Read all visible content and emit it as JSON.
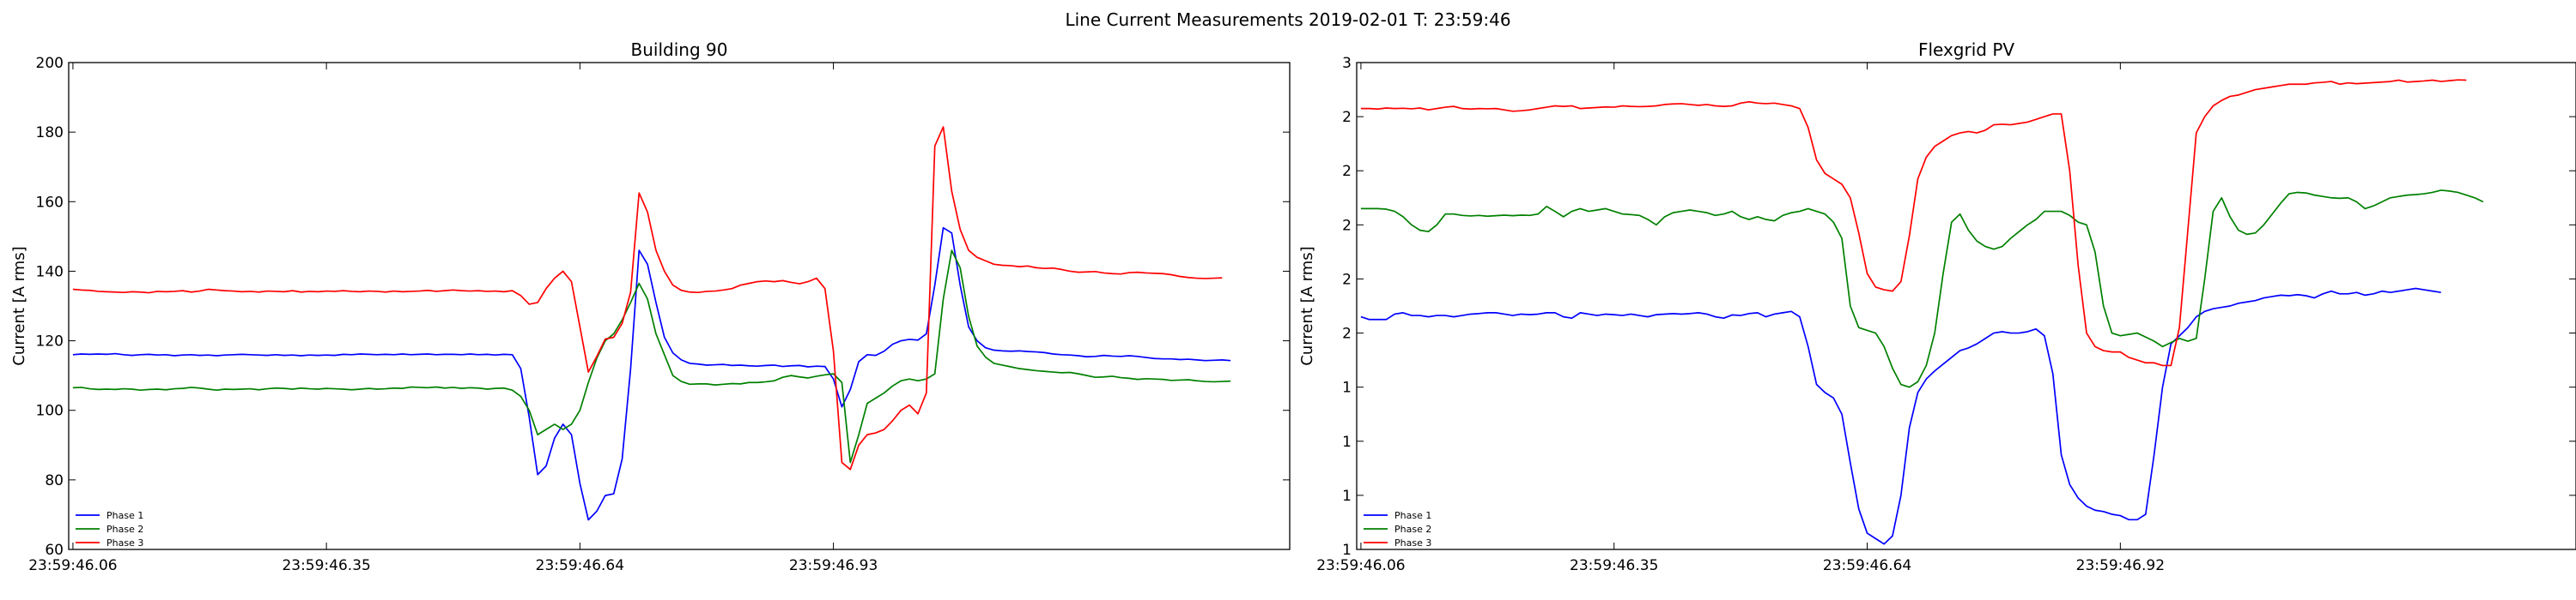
{
  "figure": {
    "title": "Line Current Measurements 2019-02-01 T: 23:59:46"
  },
  "chart_data": [
    {
      "type": "line",
      "title": "Building 90",
      "xlabel": "",
      "ylabel": "Current [A rms]",
      "ylim": [
        60,
        200
      ],
      "yticks": [
        60,
        80,
        100,
        120,
        140,
        160,
        180,
        200
      ],
      "xlim": [
        -0.5,
        144
      ],
      "xticks": [
        {
          "pos": 0,
          "label": "23:59:46.06"
        },
        {
          "pos": 30,
          "label": "23:59:46.35"
        },
        {
          "pos": 60,
          "label": "23:59:46.64"
        },
        {
          "pos": 90,
          "label": "23:59:46.93"
        }
      ],
      "legend_position": "lower-left",
      "grid": false,
      "series": [
        {
          "name": "Phase 1",
          "color": "#0000ff",
          "values": [
            116,
            116.2,
            116.1,
            116.2,
            116.1,
            116.3,
            116,
            115.8,
            116,
            116.1,
            115.9,
            116,
            115.7,
            115.9,
            116,
            115.8,
            115.9,
            115.7,
            115.9,
            116,
            116.1,
            116,
            115.9,
            115.8,
            116,
            115.8,
            115.9,
            115.7,
            115.9,
            115.8,
            115.9,
            115.8,
            116.1,
            116,
            116.2,
            116.1,
            116,
            116.1,
            116,
            116.2,
            116,
            116.1,
            116.2,
            116,
            116.1,
            116.1,
            116,
            116.2,
            116,
            116.1,
            115.9,
            116.1,
            116,
            112,
            98,
            81.5,
            84,
            92,
            96,
            93,
            79,
            68.5,
            71,
            75.5,
            76,
            86,
            112,
            146,
            142,
            131,
            121,
            116.5,
            114.5,
            113.5,
            113.3,
            113,
            113.1,
            113.2,
            112.9,
            113,
            112.8,
            112.7,
            112.9,
            113,
            112.6,
            112.8,
            112.9,
            112.5,
            112.7,
            112.6,
            109,
            101,
            106,
            114,
            116,
            115.8,
            117,
            119,
            120,
            120.4,
            120.2,
            122,
            136,
            152.5,
            151,
            136,
            124,
            120,
            118,
            117.3,
            117.1,
            117,
            117.1,
            116.9,
            116.8,
            116.6,
            116.2,
            116,
            115.9,
            115.7,
            115.4,
            115.5,
            115.8,
            115.6,
            115.5,
            115.7,
            115.5,
            115.2,
            114.9,
            114.8,
            114.8,
            114.6,
            114.7,
            114.5,
            114.3,
            114.4,
            114.5,
            114.3
          ]
        },
        {
          "name": "Phase 2",
          "color": "#008000",
          "values": [
            106.5,
            106.6,
            106.2,
            106,
            106.1,
            106,
            106.2,
            106.1,
            105.8,
            106,
            106.1,
            105.9,
            106.2,
            106.3,
            106.6,
            106.4,
            106.1,
            105.8,
            106.1,
            106,
            106.1,
            106.2,
            105.9,
            106.2,
            106.4,
            106.3,
            106.1,
            106.4,
            106.2,
            106.1,
            106.3,
            106.2,
            106.1,
            105.9,
            106.1,
            106.3,
            106.1,
            106.2,
            106.4,
            106.3,
            106.7,
            106.6,
            106.5,
            106.7,
            106.4,
            106.6,
            106.3,
            106.5,
            106.4,
            106.1,
            106.3,
            106.4,
            105.8,
            104,
            100,
            93,
            94.5,
            96,
            94.5,
            96,
            100,
            108,
            115,
            120,
            122,
            126,
            131,
            136.5,
            132,
            122,
            116,
            110,
            108.3,
            107.5,
            107.6,
            107.6,
            107.3,
            107.5,
            107.7,
            107.6,
            108,
            108,
            108.2,
            108.5,
            109.5,
            110,
            109.6,
            109.3,
            109.8,
            110.2,
            110.5,
            108,
            85,
            93,
            102,
            103.5,
            105,
            107,
            108.5,
            109,
            108.5,
            109,
            110.5,
            132,
            146,
            141,
            127,
            118.5,
            115.3,
            113.5,
            113,
            112.5,
            112,
            111.7,
            111.4,
            111.2,
            111,
            110.8,
            110.9,
            110.5,
            110,
            109.5,
            109.6,
            109.8,
            109.4,
            109.2,
            108.9,
            109.1,
            109,
            108.9,
            108.6,
            108.7,
            108.8,
            108.5,
            108.3,
            108.2,
            108.3,
            108.4
          ]
        },
        {
          "name": "Phase 3",
          "color": "#ff0000",
          "values": [
            134.8,
            134.6,
            134.5,
            134.2,
            134.1,
            134,
            133.9,
            134.1,
            134,
            133.8,
            134.2,
            134.1,
            134.2,
            134.4,
            134,
            134.3,
            134.8,
            134.6,
            134.4,
            134.3,
            134.1,
            134.2,
            134,
            134.3,
            134.2,
            134.1,
            134.4,
            134,
            134.2,
            134.1,
            134.3,
            134.2,
            134.4,
            134.2,
            134.1,
            134.3,
            134.2,
            134,
            134.3,
            134.1,
            134.2,
            134.3,
            134.5,
            134.2,
            134.4,
            134.6,
            134.4,
            134.3,
            134.4,
            134.2,
            134.3,
            134.1,
            134.4,
            133,
            130.5,
            131,
            135,
            138,
            140,
            137,
            124,
            111,
            115.5,
            120.5,
            121,
            125,
            134,
            162.5,
            157,
            146,
            140,
            136,
            134.5,
            134,
            133.9,
            134.2,
            134.3,
            134.6,
            135,
            136,
            136.5,
            137,
            137.2,
            137,
            137.3,
            136.8,
            136.4,
            137,
            138,
            135,
            117,
            85,
            83,
            90,
            93,
            93.5,
            94.5,
            97,
            100,
            101.5,
            99,
            105,
            176,
            181.5,
            163,
            152,
            146,
            144,
            143,
            142,
            141.7,
            141.6,
            141.3,
            141.5,
            141,
            140.8,
            140.9,
            140.5,
            140,
            139.7,
            139.8,
            139.9,
            139.5,
            139.3,
            139.2,
            139.6,
            139.7,
            139.5,
            139.4,
            139.3,
            139,
            138.5,
            138.2,
            138,
            137.9,
            138,
            138.1
          ]
        }
      ]
    },
    {
      "type": "line",
      "title": "Flexgrid PV",
      "xlabel": "",
      "ylabel": "Current [A rms]",
      "ylim": [
        0.8,
        2.6
      ],
      "yticks": [
        0.8,
        1.0,
        1.2,
        1.4,
        1.6,
        1.8,
        2.0,
        2.2,
        2.4,
        2.6
      ],
      "xlim": [
        -0.5,
        144
      ],
      "xticks": [
        {
          "pos": 0,
          "label": "23:59:46.06"
        },
        {
          "pos": 30,
          "label": "23:59:46.35"
        },
        {
          "pos": 60,
          "label": "23:59:46.64"
        },
        {
          "pos": 90,
          "label": "23:59:46.92"
        }
      ],
      "legend_position": "lower-left",
      "grid": false,
      "series": [
        {
          "name": "Phase 1",
          "color": "#0000ff",
          "values": [
            1.66,
            1.65,
            1.65,
            1.65,
            1.67,
            1.675,
            1.665,
            1.665,
            1.66,
            1.665,
            1.665,
            1.66,
            1.665,
            1.67,
            1.672,
            1.675,
            1.675,
            1.67,
            1.665,
            1.67,
            1.668,
            1.67,
            1.675,
            1.675,
            1.66,
            1.655,
            1.675,
            1.67,
            1.665,
            1.67,
            1.668,
            1.665,
            1.67,
            1.665,
            1.66,
            1.668,
            1.67,
            1.672,
            1.67,
            1.672,
            1.675,
            1.67,
            1.66,
            1.655,
            1.667,
            1.665,
            1.672,
            1.675,
            1.66,
            1.67,
            1.675,
            1.68,
            1.66,
            1.55,
            1.41,
            1.38,
            1.36,
            1.3,
            1.12,
            0.95,
            0.86,
            0.84,
            0.82,
            0.85,
            1.0,
            1.25,
            1.38,
            1.43,
            1.46,
            1.485,
            1.51,
            1.535,
            1.545,
            1.56,
            1.58,
            1.6,
            1.605,
            1.6,
            1.6,
            1.605,
            1.615,
            1.59,
            1.45,
            1.15,
            1.04,
            0.99,
            0.96,
            0.945,
            0.94,
            0.93,
            0.925,
            0.91,
            0.91,
            0.93,
            1.15,
            1.4,
            1.56,
            1.59,
            1.62,
            1.66,
            1.68,
            1.69,
            1.695,
            1.7,
            1.71,
            1.715,
            1.72,
            1.73,
            1.735,
            1.74,
            1.738,
            1.742,
            1.738,
            1.73,
            1.745,
            1.755,
            1.745,
            1.745,
            1.75,
            1.74,
            1.745,
            1.755,
            1.75,
            1.755,
            1.76,
            1.765,
            1.76,
            1.755,
            1.75
          ]
        },
        {
          "name": "Phase 2",
          "color": "#008000",
          "values": [
            2.06,
            2.06,
            2.06,
            2.058,
            2.05,
            2.03,
            2.0,
            1.98,
            1.975,
            2.0,
            2.04,
            2.04,
            2.035,
            2.033,
            2.035,
            2.032,
            2.034,
            2.036,
            2.034,
            2.036,
            2.035,
            2.04,
            2.068,
            2.05,
            2.03,
            2.05,
            2.06,
            2.05,
            2.055,
            2.06,
            2.05,
            2.04,
            2.038,
            2.035,
            2.02,
            2.0,
            2.03,
            2.045,
            2.05,
            2.055,
            2.05,
            2.045,
            2.035,
            2.04,
            2.05,
            2.03,
            2.02,
            2.03,
            2.02,
            2.015,
            2.035,
            2.045,
            2.05,
            2.06,
            2.05,
            2.04,
            2.01,
            1.95,
            1.7,
            1.62,
            1.61,
            1.6,
            1.55,
            1.47,
            1.41,
            1.4,
            1.42,
            1.48,
            1.6,
            1.82,
            2.01,
            2.04,
            1.98,
            1.94,
            1.92,
            1.91,
            1.92,
            1.95,
            1.975,
            2.0,
            2.02,
            2.05,
            2.05,
            2.05,
            2.035,
            2.01,
            2.0,
            1.9,
            1.7,
            1.6,
            1.59,
            1.595,
            1.6,
            1.585,
            1.57,
            1.55,
            1.565,
            1.58,
            1.57,
            1.58,
            1.8,
            2.05,
            2.1,
            2.03,
            1.98,
            1.965,
            1.97,
            2.0,
            2.04,
            2.08,
            2.115,
            2.12,
            2.118,
            2.11,
            2.105,
            2.1,
            2.098,
            2.1,
            2.085,
            2.06,
            2.07,
            2.085,
            2.1,
            2.105,
            2.11,
            2.112,
            2.115,
            2.12,
            2.128,
            2.125,
            2.12,
            2.11,
            2.1,
            2.085
          ]
        },
        {
          "name": "Phase 3",
          "color": "#ff0000",
          "values": [
            2.43,
            2.43,
            2.428,
            2.432,
            2.43,
            2.431,
            2.429,
            2.432,
            2.425,
            2.43,
            2.435,
            2.438,
            2.43,
            2.428,
            2.43,
            2.429,
            2.43,
            2.425,
            2.42,
            2.422,
            2.425,
            2.43,
            2.435,
            2.44,
            2.438,
            2.44,
            2.43,
            2.432,
            2.434,
            2.436,
            2.435,
            2.44,
            2.438,
            2.437,
            2.438,
            2.44,
            2.445,
            2.447,
            2.448,
            2.445,
            2.442,
            2.445,
            2.44,
            2.438,
            2.44,
            2.45,
            2.455,
            2.45,
            2.448,
            2.45,
            2.445,
            2.44,
            2.43,
            2.36,
            2.24,
            2.19,
            2.17,
            2.15,
            2.1,
            1.97,
            1.82,
            1.77,
            1.76,
            1.755,
            1.79,
            1.96,
            2.17,
            2.25,
            2.29,
            2.31,
            2.33,
            2.34,
            2.345,
            2.34,
            2.35,
            2.37,
            2.372,
            2.37,
            2.375,
            2.38,
            2.39,
            2.4,
            2.41,
            2.41,
            2.2,
            1.85,
            1.6,
            1.55,
            1.535,
            1.53,
            1.53,
            1.51,
            1.5,
            1.49,
            1.49,
            1.48,
            1.48,
            1.62,
            1.98,
            2.34,
            2.4,
            2.44,
            2.46,
            2.475,
            2.48,
            2.49,
            2.5,
            2.505,
            2.51,
            2.515,
            2.52,
            2.52,
            2.52,
            2.525,
            2.527,
            2.53,
            2.52,
            2.525,
            2.522,
            2.524,
            2.526,
            2.528,
            2.53,
            2.535,
            2.528,
            2.53,
            2.532,
            2.535,
            2.53,
            2.533,
            2.536,
            2.535
          ]
        }
      ]
    }
  ]
}
